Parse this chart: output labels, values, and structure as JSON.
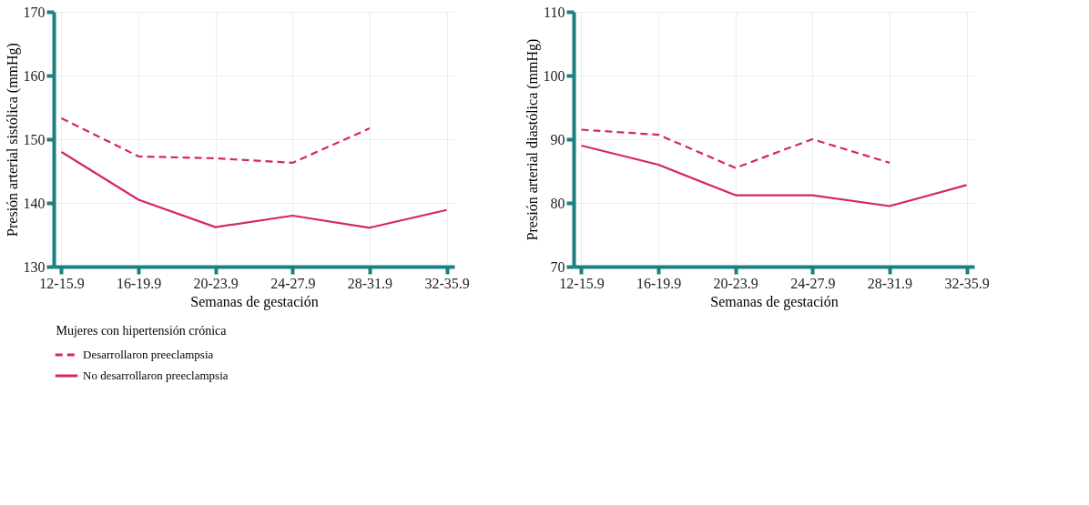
{
  "chart_data": [
    {
      "type": "line",
      "xlabel": "Semanas de gestación",
      "ylabel": "Presión arterial sistólica (mmHg)",
      "categories": [
        "12-15.9",
        "16-19.9",
        "20-23.9",
        "24-27.9",
        "28-31.9",
        "32-35.9"
      ],
      "ylim": [
        130,
        170
      ],
      "yticks": [
        130,
        140,
        150,
        160,
        170
      ],
      "grid": true,
      "legend": "bottom",
      "legend_title": "Mujeres con hipertensión crónica",
      "series": [
        {
          "name": "Desarrollaron preeclampsia",
          "color": "#d6246e",
          "line_style": "dashed",
          "values": [
            153.3,
            147.3,
            147.0,
            146.3,
            151.7,
            null
          ]
        },
        {
          "name": "No desarrollaron preeclampsia",
          "color": "#d6246e",
          "line_style": "solid",
          "values": [
            148.0,
            140.5,
            136.2,
            138.0,
            136.1,
            138.9
          ]
        }
      ]
    },
    {
      "type": "line",
      "xlabel": "Semanas de gestación",
      "ylabel": "Presión arterial diastólica (mmHg)",
      "categories": [
        "12-15.9",
        "16-19.9",
        "20-23.9",
        "24-27.9",
        "28-31.9",
        "32-35.9"
      ],
      "ylim": [
        70,
        110
      ],
      "yticks": [
        70,
        80,
        90,
        100,
        110
      ],
      "grid": true,
      "series": [
        {
          "name": "Desarrollaron preeclampsia",
          "color": "#d6246e",
          "line_style": "dashed",
          "values": [
            91.5,
            90.7,
            85.5,
            90.0,
            86.3,
            null
          ]
        },
        {
          "name": "No desarrollaron preeclampsia",
          "color": "#d6246e",
          "line_style": "solid",
          "values": [
            89.0,
            86.0,
            81.2,
            81.2,
            79.5,
            82.8
          ]
        }
      ]
    }
  ]
}
